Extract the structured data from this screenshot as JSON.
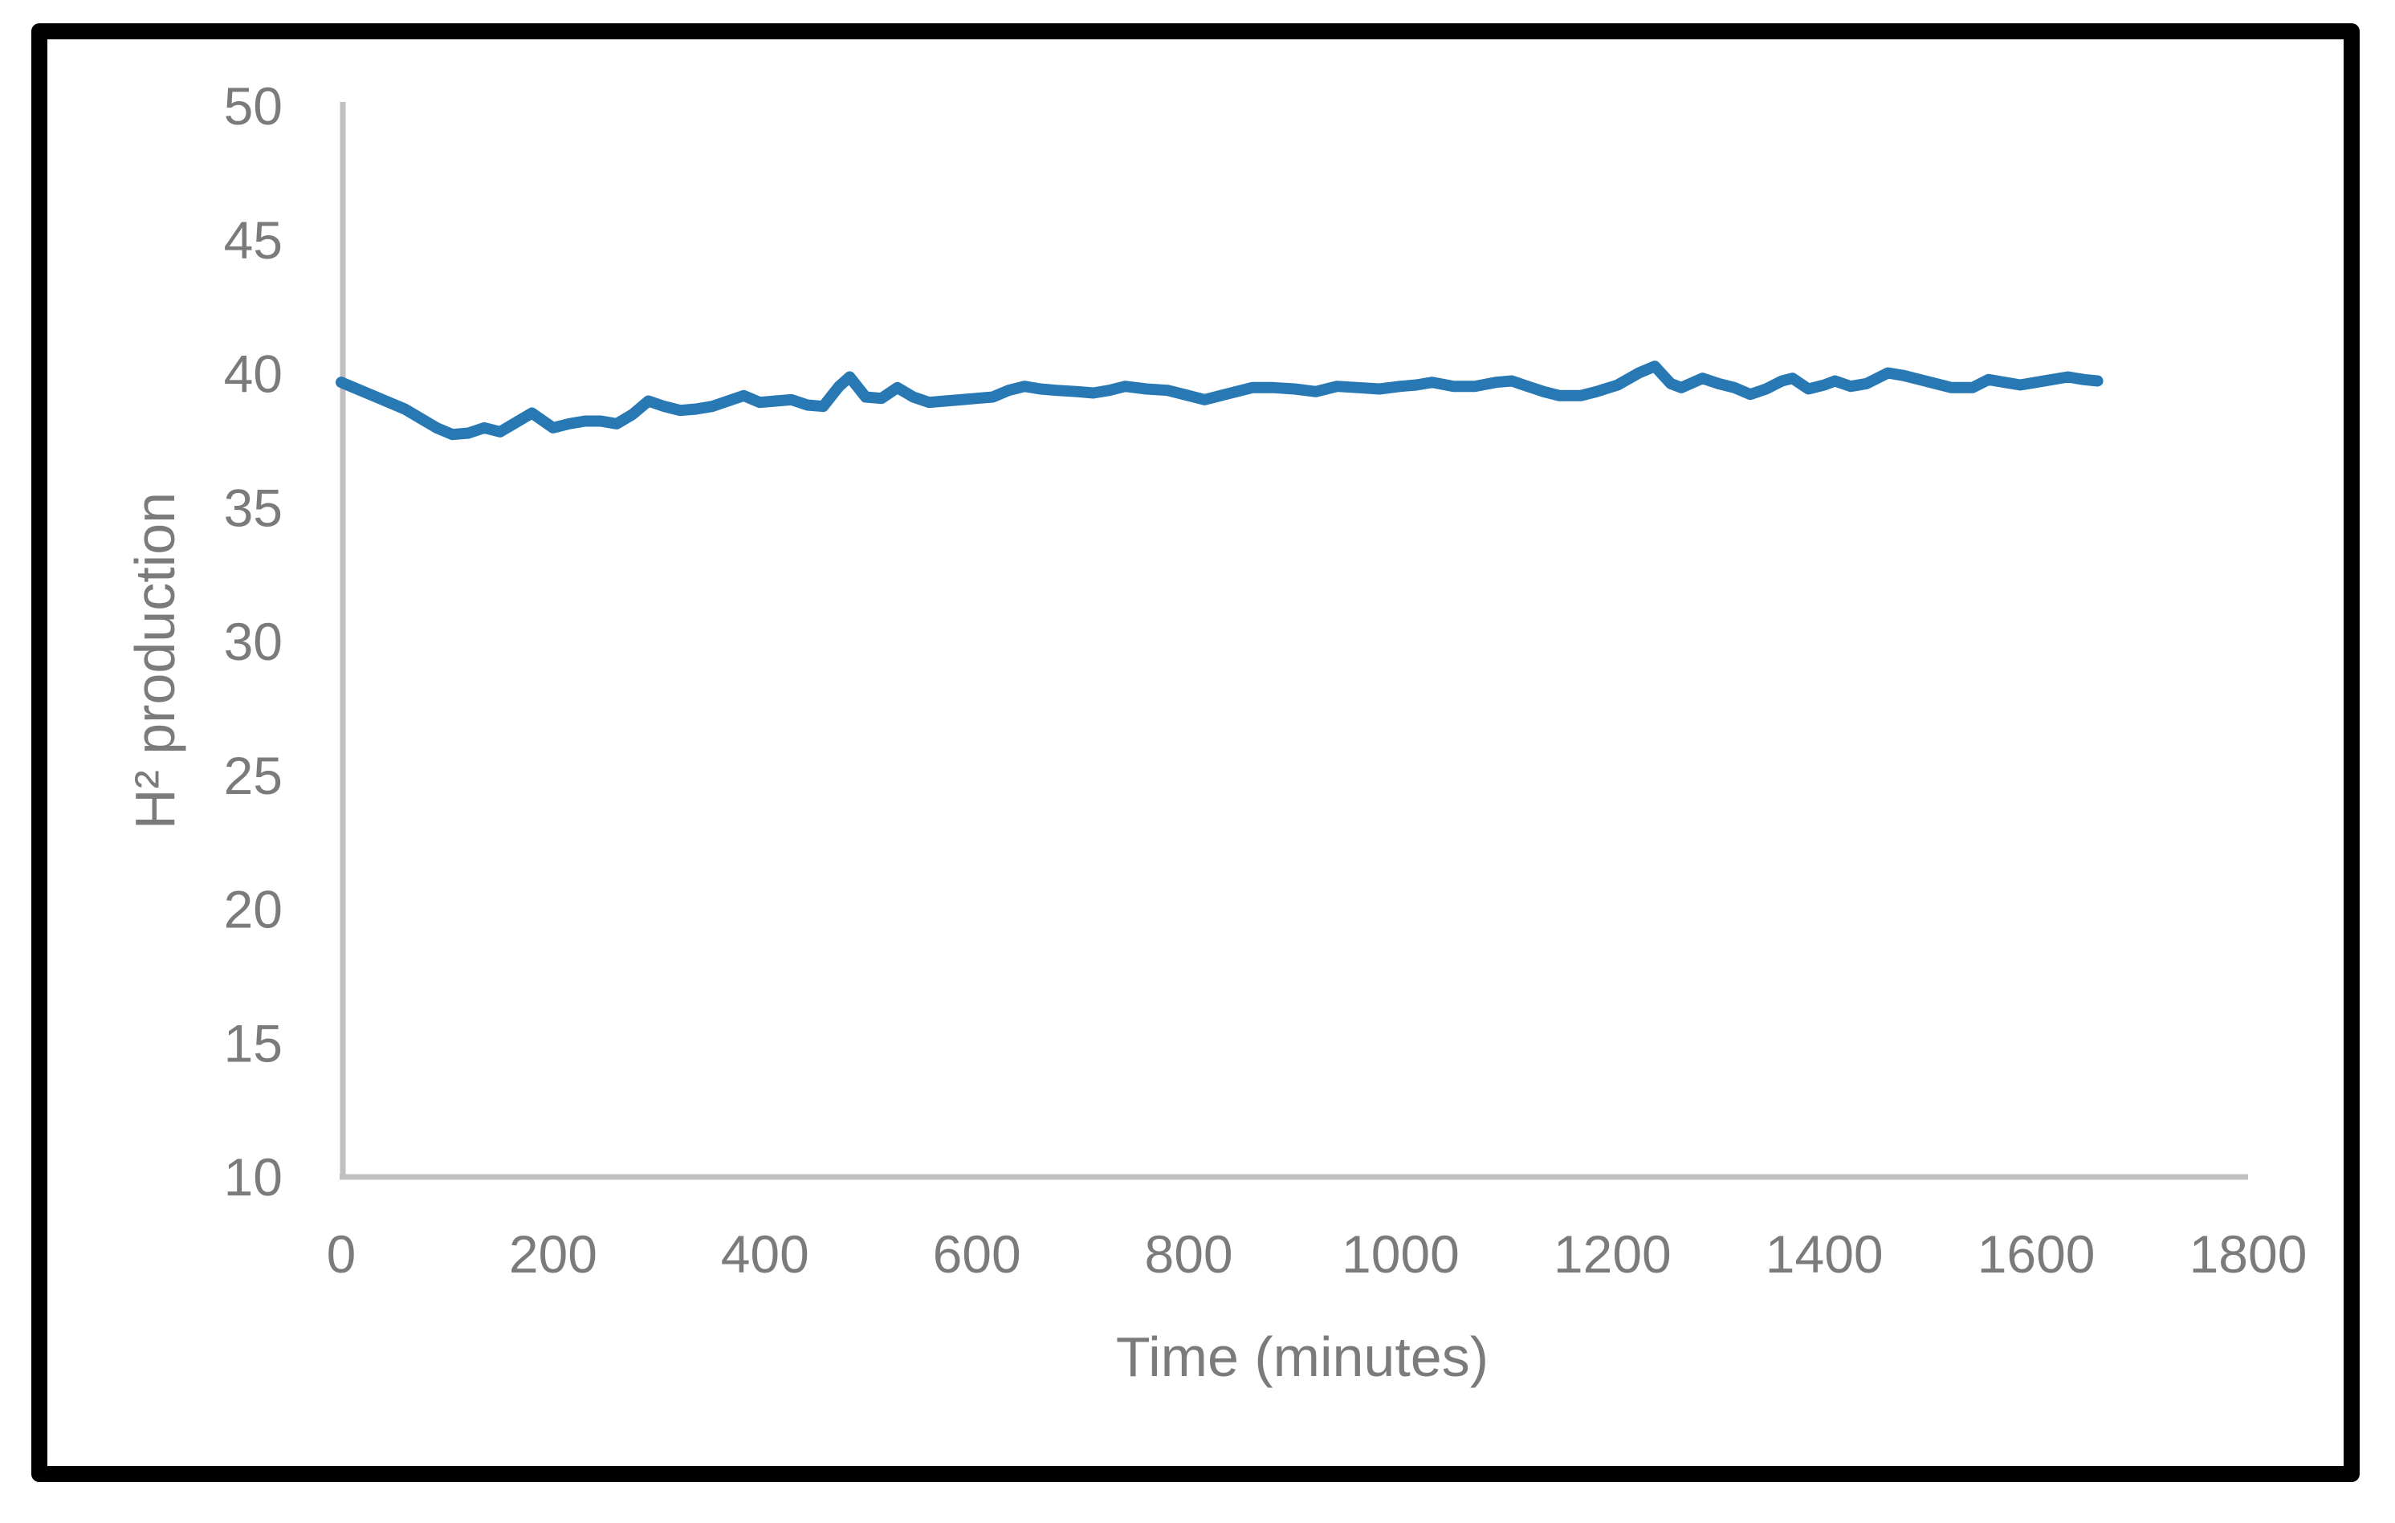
{
  "figure": {
    "background_color": "#ffffff",
    "border_color": "#000000"
  },
  "chart_data": {
    "type": "line",
    "title": "",
    "xlabel": "Time (minutes)",
    "ylabel": "H² production",
    "xlim": [
      0,
      1800
    ],
    "ylim": [
      10,
      50
    ],
    "x_ticks": [
      0,
      200,
      400,
      600,
      800,
      1000,
      1200,
      1400,
      1600,
      1800
    ],
    "y_ticks": [
      10,
      15,
      20,
      25,
      30,
      35,
      40,
      45,
      50
    ],
    "grid": false,
    "legend": false,
    "line_color": "#2878b4",
    "axis_line_color": "#c0c0c0",
    "tick_text_color": "#7b7b7b",
    "x": [
      0,
      15,
      30,
      45,
      60,
      75,
      90,
      105,
      120,
      135,
      150,
      165,
      180,
      200,
      215,
      230,
      245,
      260,
      275,
      290,
      305,
      320,
      335,
      350,
      365,
      380,
      395,
      410,
      425,
      440,
      455,
      470,
      480,
      495,
      510,
      525,
      540,
      555,
      570,
      585,
      600,
      615,
      630,
      645,
      660,
      675,
      695,
      710,
      725,
      740,
      760,
      780,
      800,
      815,
      830,
      845,
      860,
      880,
      900,
      920,
      940,
      960,
      980,
      1000,
      1015,
      1030,
      1050,
      1070,
      1090,
      1105,
      1120,
      1135,
      1150,
      1170,
      1185,
      1205,
      1225,
      1240,
      1255,
      1265,
      1285,
      1300,
      1315,
      1330,
      1345,
      1360,
      1370,
      1385,
      1400,
      1410,
      1425,
      1440,
      1460,
      1475,
      1490,
      1505,
      1520,
      1540,
      1555,
      1570,
      1585,
      1600,
      1615,
      1630,
      1645,
      1658
    ],
    "values": [
      39.65,
      39.4,
      39.15,
      38.9,
      38.65,
      38.3,
      37.95,
      37.7,
      37.75,
      37.95,
      37.8,
      38.15,
      38.5,
      37.95,
      38.1,
      38.2,
      38.2,
      38.1,
      38.45,
      38.95,
      38.75,
      38.6,
      38.65,
      38.75,
      38.95,
      39.15,
      38.9,
      38.95,
      39.0,
      38.8,
      38.75,
      39.5,
      39.85,
      39.1,
      39.05,
      39.45,
      39.1,
      38.9,
      38.95,
      39.0,
      39.05,
      39.1,
      39.35,
      39.5,
      39.4,
      39.35,
      39.3,
      39.25,
      39.35,
      39.5,
      39.4,
      39.35,
      39.15,
      39.0,
      39.15,
      39.3,
      39.45,
      39.45,
      39.4,
      39.3,
      39.5,
      39.45,
      39.4,
      39.5,
      39.55,
      39.65,
      39.5,
      39.5,
      39.65,
      39.7,
      39.5,
      39.3,
      39.15,
      39.15,
      39.3,
      39.55,
      40.0,
      40.25,
      39.6,
      39.45,
      39.8,
      39.6,
      39.45,
      39.2,
      39.4,
      39.7,
      39.8,
      39.4,
      39.55,
      39.7,
      39.5,
      39.6,
      40.0,
      39.9,
      39.75,
      39.6,
      39.45,
      39.45,
      39.75,
      39.65,
      39.55,
      39.65,
      39.75,
      39.85,
      39.75,
      39.7
    ]
  }
}
